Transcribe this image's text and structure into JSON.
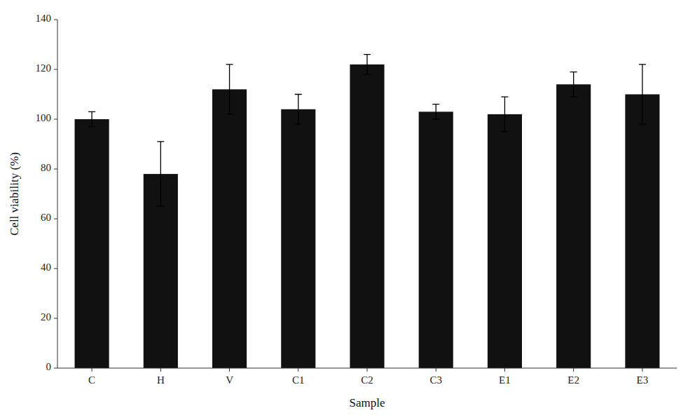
{
  "chart_data": {
    "type": "bar",
    "categories": [
      "C",
      "H",
      "V",
      "C1",
      "C2",
      "C3",
      "E1",
      "E2",
      "E3"
    ],
    "values": [
      100,
      78,
      112,
      104,
      122,
      103,
      102,
      114,
      110
    ],
    "errors": [
      3,
      13,
      10,
      6,
      4,
      3,
      7,
      5,
      12
    ],
    "color": "#111111",
    "xlabel": "Sample",
    "ylabel": "Cell viability (%)",
    "ylim": [
      0,
      140
    ],
    "yticks": [
      0,
      20,
      40,
      60,
      80,
      100,
      120,
      140
    ],
    "grid": false
  }
}
